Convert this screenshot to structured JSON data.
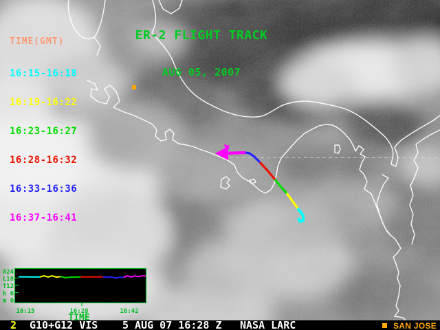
{
  "header": {
    "title_line1": "ER-2 FLIGHT TRACK",
    "title_line2": "AUG 05, 2007",
    "title_color": "#00cc22"
  },
  "legend": {
    "title": "TIME(GMT)",
    "title_color": "#ff9977",
    "entries": [
      {
        "label": "16:15-16:18",
        "color": "#00ffff"
      },
      {
        "label": "16:19-16:22",
        "color": "#ffff00"
      },
      {
        "label": "16:23-16:27",
        "color": "#00dd00"
      },
      {
        "label": "16:28-16:32",
        "color": "#ee1100"
      },
      {
        "label": "16:33-16:36",
        "color": "#2222ff"
      },
      {
        "label": "16:37-16:41",
        "color": "#ff00ff"
      }
    ]
  },
  "map": {
    "san_jose_marker_color": "#ffaa00",
    "coastline_color": "#ffffff",
    "latitude_line_color": "#dddddd"
  },
  "chart_data": {
    "type": "line",
    "title": "ER-2 altitude profile",
    "xlabel": "TIME",
    "ylabel_letters": [
      "A",
      "L",
      "T",
      "k",
      "m"
    ],
    "ylabel": "ALT km",
    "y_tick_labels": [
      "24",
      "18",
      "12",
      "6",
      "0"
    ],
    "x_tick_labels": [
      "16:15",
      "16:28",
      "16:42"
    ],
    "ylim": [
      0,
      24
    ],
    "frame_color": "#00bb22",
    "legend_position": "none",
    "grid": false,
    "series": [
      {
        "name": "16:15-16:18",
        "color": "#00ffff",
        "altitude_km": [
          19.0,
          19.0,
          18.9,
          18.9
        ]
      },
      {
        "name": "16:19-16:22",
        "color": "#ffff00",
        "altitude_km": [
          18.9,
          19.9,
          18.9,
          19.9,
          18.8,
          19.2
        ]
      },
      {
        "name": "16:23-16:27",
        "color": "#00dd00",
        "altitude_km": [
          19.2,
          18.3,
          18.8,
          18.8,
          19.0
        ]
      },
      {
        "name": "16:28-16:32",
        "color": "#ee1100",
        "altitude_km": [
          19.0,
          19.0,
          19.0,
          19.0
        ]
      },
      {
        "name": "16:33-16:36",
        "color": "#2222ff",
        "altitude_km": [
          19.0,
          18.6,
          19.0,
          18.0,
          18.6,
          18.6
        ]
      },
      {
        "name": "16:37-16:41",
        "color": "#ff00ff",
        "altitude_km": [
          18.6,
          19.9,
          18.9,
          19.9,
          19.2,
          19.9,
          19.9
        ]
      }
    ]
  },
  "status_bar": {
    "channel_number": "2",
    "channel_color": "#ffff00",
    "source": "G10+G12 VIS",
    "datetime": "5 AUG 07 16:28 Z",
    "organization": "NASA LARC",
    "station": "SAN JOSE",
    "station_color": "#ffaa00"
  }
}
